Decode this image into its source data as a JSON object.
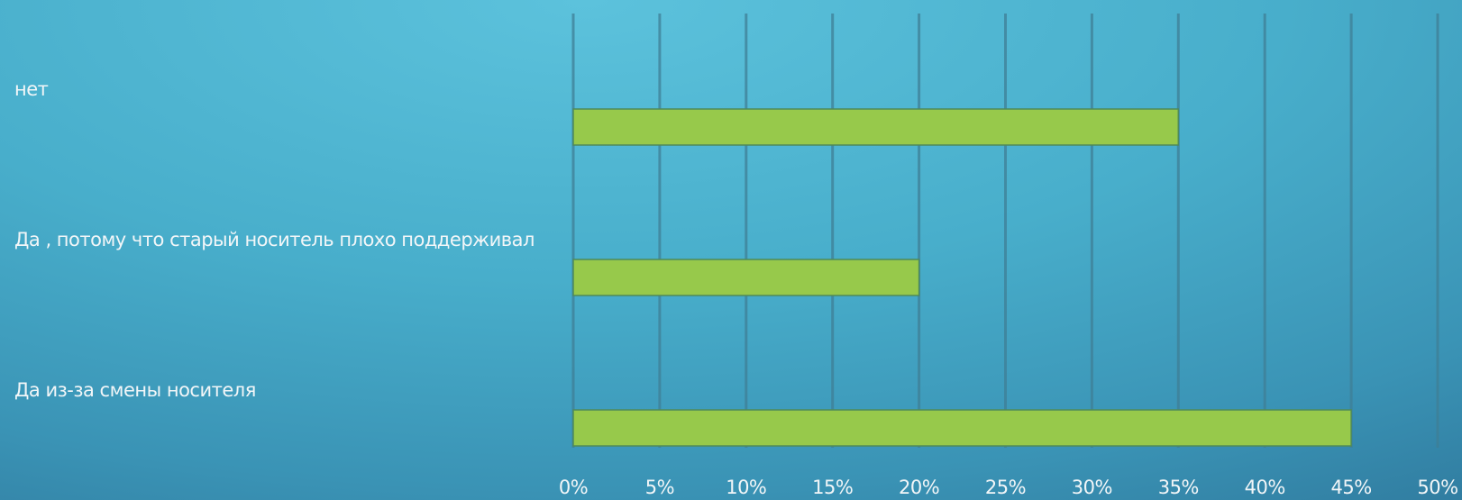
{
  "chart_data": {
    "type": "bar",
    "orientation": "horizontal",
    "categories": [
      "нет",
      "Да , потому что  старый носитель плохо поддерживал",
      "Да  из-за смены носителя"
    ],
    "values": [
      35,
      20,
      45
    ],
    "value_unit": "%",
    "xlim": [
      0,
      50
    ],
    "x_ticks": [
      "0%",
      "5%",
      "10%",
      "15%",
      "20%",
      "25%",
      "30%",
      "35%",
      "40%",
      "45%",
      "50%"
    ],
    "bar_color": "#97c94b",
    "grid": true
  }
}
